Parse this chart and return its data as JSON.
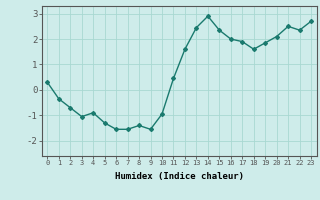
{
  "x": [
    0,
    1,
    2,
    3,
    4,
    5,
    6,
    7,
    8,
    9,
    10,
    11,
    12,
    13,
    14,
    15,
    16,
    17,
    18,
    19,
    20,
    21,
    22,
    23
  ],
  "y": [
    0.3,
    -0.35,
    -0.7,
    -1.05,
    -0.9,
    -1.3,
    -1.55,
    -1.55,
    -1.4,
    -1.55,
    -0.95,
    0.45,
    1.6,
    2.45,
    2.9,
    2.35,
    2.0,
    1.9,
    1.6,
    1.85,
    2.1,
    2.5,
    2.35,
    2.7
  ],
  "line_color": "#1a7a6e",
  "marker": "D",
  "marker_size": 2.0,
  "line_width": 1.0,
  "background_color": "#ceecea",
  "grid_color": "#a8d8d2",
  "axis_color": "#555555",
  "xlabel": "Humidex (Indice chaleur)",
  "xlabel_fontsize": 6.5,
  "ytick_fontsize": 6.5,
  "xtick_fontsize": 5.0,
  "ylim": [
    -2.6,
    3.3
  ],
  "xlim": [
    -0.5,
    23.5
  ],
  "yticks": [
    -2,
    -1,
    0,
    1,
    2,
    3
  ],
  "xticks": [
    0,
    1,
    2,
    3,
    4,
    5,
    6,
    7,
    8,
    9,
    10,
    11,
    12,
    13,
    14,
    15,
    16,
    17,
    18,
    19,
    20,
    21,
    22,
    23
  ]
}
